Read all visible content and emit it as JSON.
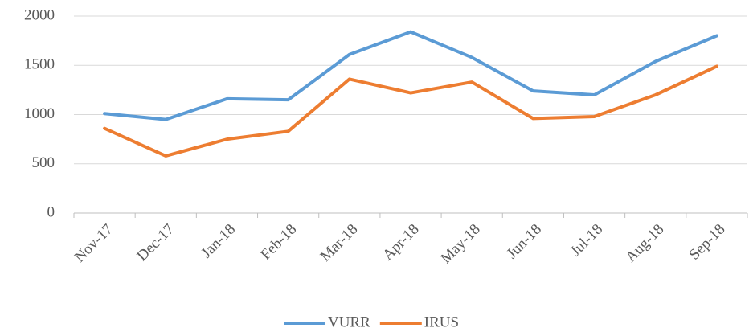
{
  "chart_data": {
    "type": "line",
    "categories": [
      "Nov-17",
      "Dec-17",
      "Jan-18",
      "Feb-18",
      "Mar-18",
      "Apr-18",
      "May-18",
      "Jun-18",
      "Jul-18",
      "Aug-18",
      "Sep-18"
    ],
    "series": [
      {
        "name": "VURR",
        "color": "#5b9bd5",
        "values": [
          1010,
          950,
          1160,
          1150,
          1610,
          1840,
          1580,
          1240,
          1200,
          1540,
          1800
        ]
      },
      {
        "name": "IRUS",
        "color": "#ed7d31",
        "values": [
          860,
          580,
          750,
          830,
          1360,
          1220,
          1330,
          960,
          980,
          1200,
          1490
        ]
      }
    ],
    "ylim": [
      0,
      2000
    ],
    "yticks": [
      0,
      500,
      1000,
      1500,
      2000
    ],
    "grid": true,
    "legend": "bottom"
  }
}
